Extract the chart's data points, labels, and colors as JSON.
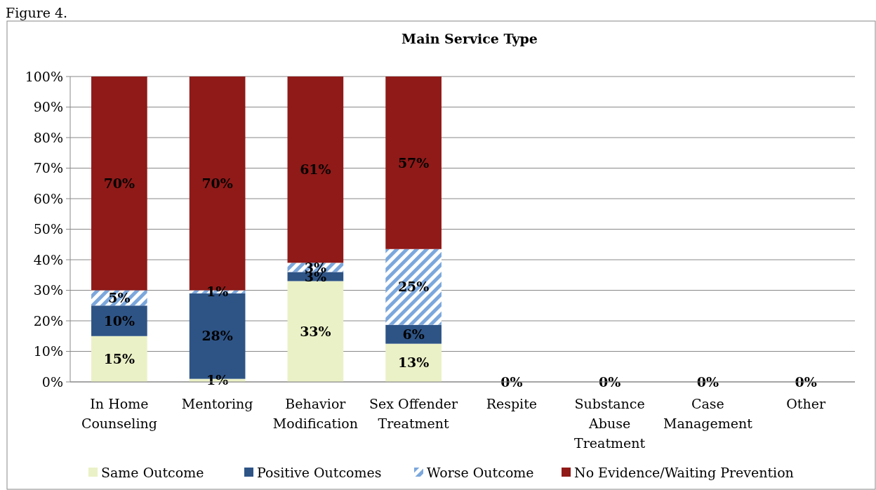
{
  "chart_data": {
    "type": "bar",
    "title": "Main Service Type",
    "stacked": true,
    "categories": [
      "In Home Counseling",
      "Mentoring",
      "Behavior Modification",
      "Sex Offender Treatment",
      "Respite",
      "Substance Abuse Treatment",
      "Case Management",
      "Other"
    ],
    "series": [
      {
        "name": "Same Outcome",
        "color": "#ebf1c6",
        "values": [
          15,
          1,
          33,
          12.5,
          0,
          0,
          0,
          0
        ],
        "value_labels": [
          "15%",
          "1%",
          "33%",
          "13%",
          null,
          null,
          null,
          null
        ]
      },
      {
        "name": "Positive Outcomes",
        "color": "#2e5486",
        "values": [
          10,
          28,
          3,
          6.2,
          0,
          0,
          0,
          0
        ],
        "value_labels": [
          "10%",
          "28%",
          "3%",
          "6%",
          null,
          null,
          null,
          null
        ]
      },
      {
        "name": "Worse Outcome",
        "color": "#7ba7dc",
        "values": [
          5,
          1,
          3,
          24.8,
          0,
          0,
          0,
          0
        ],
        "value_labels": [
          "5%",
          "1%",
          "3%",
          "25%",
          null,
          null,
          null,
          null
        ]
      },
      {
        "name": "No Evidence/Waiting Prevention",
        "color": "#8f1a18",
        "values": [
          70,
          70,
          61,
          56.5,
          0,
          0,
          0,
          0
        ],
        "value_labels": [
          "70%",
          "70%",
          "61%",
          "57%",
          "0%",
          "0%",
          "0%",
          "0%"
        ]
      }
    ],
    "ylim": [
      0,
      100
    ],
    "yticks": [
      {
        "value": 0,
        "label": "0%"
      },
      {
        "value": 10,
        "label": "10%"
      },
      {
        "value": 20,
        "label": "20%"
      },
      {
        "value": 30,
        "label": "30%"
      },
      {
        "value": 40,
        "label": "40%"
      },
      {
        "value": 50,
        "label": "50%"
      },
      {
        "value": 60,
        "label": "60%"
      },
      {
        "value": 70,
        "label": "70%"
      },
      {
        "value": 80,
        "label": "80%"
      },
      {
        "value": 90,
        "label": "90%"
      },
      {
        "value": 100,
        "label": "100%"
      }
    ],
    "grid": "y",
    "legend": "bottom",
    "annotations": [
      "Figure 4."
    ]
  }
}
